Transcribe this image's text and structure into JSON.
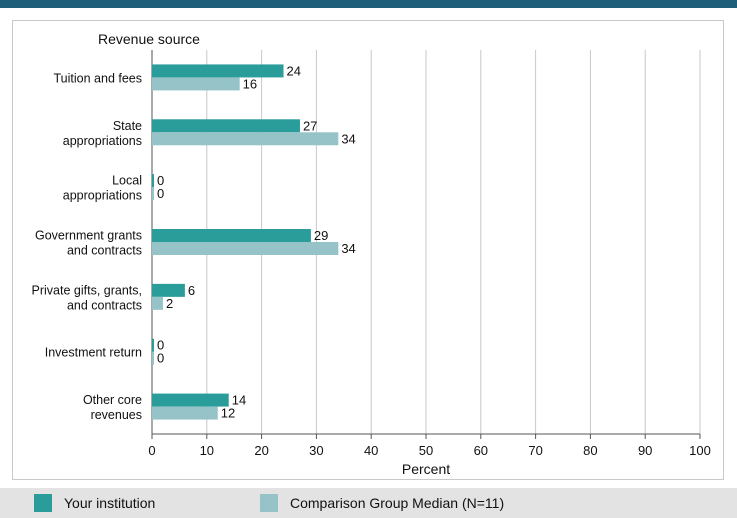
{
  "colors": {
    "header_rule": "#1f5f7a",
    "series_institution": "#2a9d9a",
    "series_comparison": "#96c3c8",
    "grid": "#c8c8c8",
    "axis": "#555555"
  },
  "legend": {
    "items": [
      {
        "label": "Your institution",
        "color": "#2a9d9a"
      },
      {
        "label": "Comparison Group Median (N=11)",
        "color": "#96c3c8"
      }
    ]
  },
  "chart_data": {
    "type": "bar",
    "orientation": "horizontal",
    "title": "Revenue source",
    "xlabel": "Percent",
    "ylabel": "",
    "xlim": [
      0,
      100
    ],
    "xticks": [
      0,
      10,
      20,
      30,
      40,
      50,
      60,
      70,
      80,
      90,
      100
    ],
    "grid": true,
    "legend_position": "bottom",
    "categories": [
      [
        "Tuition and fees"
      ],
      [
        "State",
        "appropriations"
      ],
      [
        "Local",
        "appropriations"
      ],
      [
        "Government grants",
        "and contracts"
      ],
      [
        "Private gifts, grants,",
        "and contracts"
      ],
      [
        "Investment return"
      ],
      [
        "Other core",
        "revenues"
      ]
    ],
    "series": [
      {
        "name": "Your institution",
        "values": [
          24,
          27,
          0,
          29,
          6,
          0,
          14
        ]
      },
      {
        "name": "Comparison Group Median (N=11)",
        "values": [
          16,
          34,
          0,
          34,
          2,
          0,
          12
        ]
      }
    ]
  }
}
